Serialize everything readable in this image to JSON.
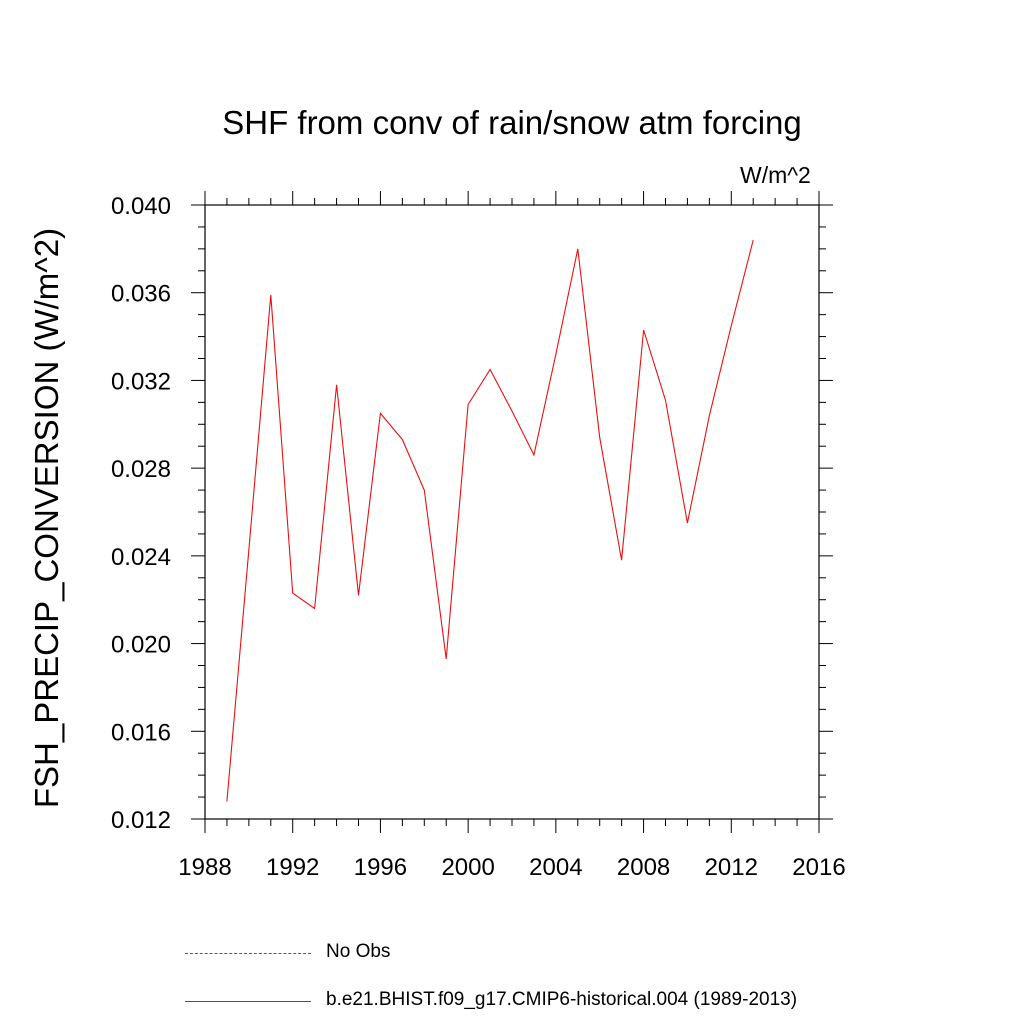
{
  "chart_data": {
    "type": "line",
    "title": "SHF from conv of rain/snow atm forcing",
    "units_label": "W/m^2",
    "xlabel": "",
    "ylabel": "FSH_PRECIP_CONVERSION  (W/m^2)",
    "xlim": [
      1988,
      2016
    ],
    "ylim": [
      0.012,
      0.04
    ],
    "x_ticks": [
      "1988",
      "1992",
      "1996",
      "2000",
      "2004",
      "2008",
      "2012",
      "2016"
    ],
    "y_ticks": [
      "0.012",
      "0.016",
      "0.020",
      "0.024",
      "0.028",
      "0.032",
      "0.036",
      "0.040"
    ],
    "grid": false,
    "legend_placement": "bottom",
    "series": [
      {
        "name": "No Obs",
        "style": "dashed",
        "color": "#4b4bcc",
        "x": [],
        "values": []
      },
      {
        "name": "b.e21.BHIST.f09_g17.CMIP6-historical.004 (1989-2013)",
        "style": "solid",
        "color": "#e81010",
        "x": [
          1989,
          1990,
          1991,
          1992,
          1993,
          1994,
          1995,
          1996,
          1997,
          1998,
          1999,
          2000,
          2001,
          2002,
          2003,
          2004,
          2005,
          2006,
          2007,
          2008,
          2009,
          2010,
          2011,
          2012,
          2013
        ],
        "values": [
          0.0128,
          0.0243,
          0.0359,
          0.0223,
          0.0216,
          0.0318,
          0.0222,
          0.0305,
          0.0293,
          0.027,
          0.0193,
          0.0309,
          0.0325,
          0.0306,
          0.0286,
          0.0332,
          0.038,
          0.0294,
          0.0238,
          0.0343,
          0.0311,
          0.0255,
          0.0304,
          0.0345,
          0.0384
        ]
      }
    ]
  }
}
